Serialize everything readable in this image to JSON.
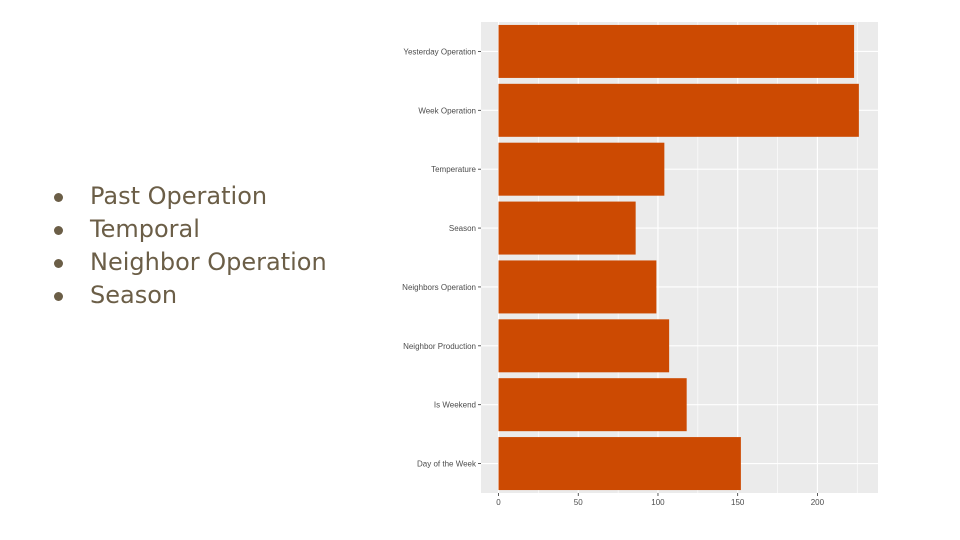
{
  "bullets": [
    {
      "label": "Past Operation"
    },
    {
      "label": "Temporal"
    },
    {
      "label": "Neighbor Operation"
    },
    {
      "label": "Season"
    }
  ],
  "colors": {
    "bullet_text": "#6b5e47",
    "bar_fill": "#cc4a02",
    "panel_bg": "#ebebeb",
    "grid": "#ffffff"
  },
  "chart_data": {
    "type": "bar",
    "orientation": "horizontal",
    "categories": [
      "Yesterday Operation",
      "Week Operation",
      "Temperature",
      "Season",
      "Neighbors Operation",
      "Neighbor Production",
      "Is Weekend",
      "Day of the Week"
    ],
    "values": [
      223,
      226,
      104,
      86,
      99,
      107,
      118,
      152
    ],
    "xlim": [
      -11,
      238
    ],
    "x_ticks": [
      0,
      50,
      100,
      150,
      200
    ],
    "grid": true
  }
}
